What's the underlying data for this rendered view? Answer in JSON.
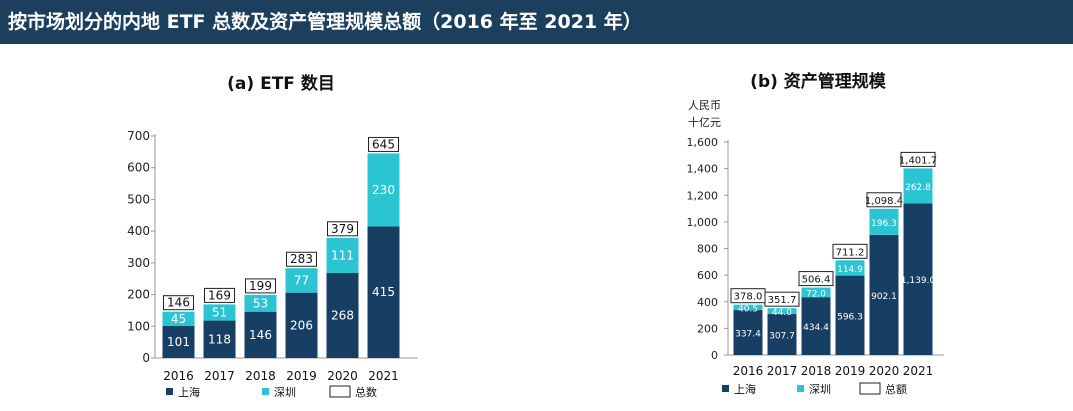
{
  "banner": {
    "title": "按市场划分的内地 ETF 总数及资产管理规模总额（2016 年至 2021 年）"
  },
  "colors": {
    "banner": "#1c3f5e",
    "shanghai": "#163f63",
    "shenzhen": "#2bc4d3",
    "total_border": "#222222"
  },
  "chart_data": [
    {
      "type": "bar",
      "stacked": true,
      "title": "(a)  ETF 数目",
      "ylabel": "",
      "categories": [
        "2016",
        "2017",
        "2018",
        "2019",
        "2020",
        "2021"
      ],
      "ylim": [
        0,
        700
      ],
      "yticks": [
        "0",
        "100",
        "200",
        "300",
        "400",
        "500",
        "600",
        "700"
      ],
      "series": [
        {
          "name": "上海",
          "values": [
            101,
            118,
            146,
            206,
            268,
            415
          ],
          "labels": [
            "101",
            "118",
            "146",
            "206",
            "268",
            "415"
          ]
        },
        {
          "name": "深圳",
          "values": [
            45,
            51,
            53,
            77,
            111,
            230
          ],
          "labels": [
            "45",
            "51",
            "53",
            "77",
            "111",
            "230"
          ]
        }
      ],
      "totals": {
        "name": "总数",
        "values": [
          146,
          169,
          199,
          283,
          379,
          645
        ],
        "labels": [
          "146",
          "169",
          "199",
          "283",
          "379",
          "645"
        ]
      },
      "legend": [
        "上海",
        "深圳",
        "总数"
      ]
    },
    {
      "type": "bar",
      "stacked": true,
      "title": "(b)   资产管理规模",
      "ylabel": [
        "人民币",
        "十亿元"
      ],
      "categories": [
        "2016",
        "2017",
        "2018",
        "2019",
        "2020",
        "2021"
      ],
      "ylim": [
        0,
        1600
      ],
      "yticks": [
        "0",
        "200",
        "400",
        "600",
        "800",
        "1,000",
        "1,200",
        "1,400",
        "1,600"
      ],
      "series": [
        {
          "name": "上海",
          "values": [
            337.4,
            307.7,
            434.4,
            596.3,
            902.1,
            1139.0
          ],
          "labels": [
            "337.4",
            "307.7",
            "434.4",
            "596.3",
            "902.1",
            "1,139.0"
          ]
        },
        {
          "name": "深圳",
          "values": [
            40.5,
            44.0,
            72.0,
            114.9,
            196.3,
            262.8
          ],
          "labels": [
            "40.5",
            "44.0",
            "72.0",
            "114.9",
            "196.3",
            "262.8"
          ]
        }
      ],
      "totals": {
        "name": "总额",
        "values": [
          378.0,
          351.7,
          506.4,
          711.2,
          1098.4,
          1401.7
        ],
        "labels": [
          "378.0",
          "351.7",
          "506.4",
          "711.2",
          "1,098.4",
          "1,401.7"
        ]
      },
      "legend": [
        "上海",
        "深圳",
        "总额"
      ]
    }
  ]
}
